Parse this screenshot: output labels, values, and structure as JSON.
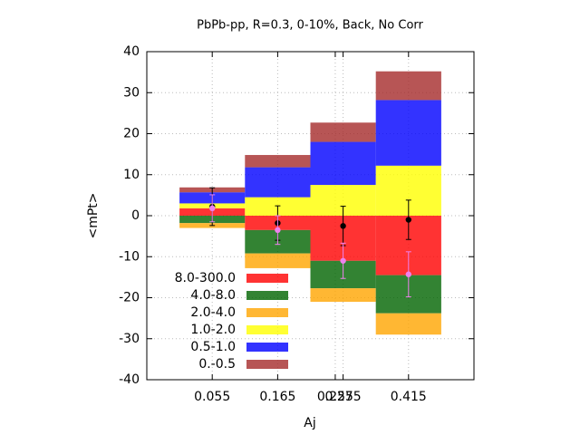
{
  "chart_data": {
    "type": "stacked-bar",
    "title": "PbPb-pp, R=0.3, 0-10%, Back, No Corr",
    "x_label": "Aj",
    "y_label": "<mPt>",
    "x": [
      0,
      1,
      2,
      3
    ],
    "xlim": [
      -1,
      4
    ],
    "xticks": [
      {
        "value": 0,
        "label": "0.055"
      },
      {
        "value": 1,
        "label": "0.165"
      },
      {
        "value": 1.88,
        "label": "0.255"
      },
      {
        "value": 2,
        "label": "0.275"
      },
      {
        "value": 3,
        "label": "0.415"
      }
    ],
    "ylim": [
      -40,
      40
    ],
    "yticks": [
      -40,
      -30,
      -20,
      -10,
      0,
      10,
      20,
      30,
      40
    ],
    "grid": true,
    "legend": "lower-left",
    "series": [
      {
        "name": "8.0-300.0",
        "color": "#ff0000",
        "values": [
          1.8,
          -3.5,
          -11,
          -14.5
        ]
      },
      {
        "name": "4.0-8.0",
        "color": "#006400",
        "values": [
          -1.8,
          -5.7,
          -6.7,
          -9.3
        ]
      },
      {
        "name": "2.0-4.0",
        "color": "#ffa500",
        "values": [
          -1.2,
          -3.6,
          -3.3,
          -5.2
        ]
      },
      {
        "name": "1.0-2.0",
        "color": "#ffff00",
        "values": [
          1.2,
          4.5,
          7.5,
          12.2
        ]
      },
      {
        "name": "0.5-1.0",
        "color": "#0000ff",
        "values": [
          2.7,
          7.3,
          10.5,
          16
        ]
      },
      {
        "name": "0.-0.5",
        "color": "#a52a2a",
        "values": [
          1.2,
          3.0,
          4.7,
          7.0
        ]
      }
    ],
    "points": [
      {
        "color": "#000000",
        "values": [
          2.2,
          -1.8,
          -2.5,
          -1.0
        ],
        "errors": [
          4.6,
          4.2,
          4.8,
          4.8
        ]
      },
      {
        "color": "#ee82ee",
        "values": [
          1.8,
          -3.5,
          -11,
          -14.3
        ],
        "errors": [
          3.3,
          3.5,
          4.3,
          5.5
        ]
      }
    ]
  }
}
